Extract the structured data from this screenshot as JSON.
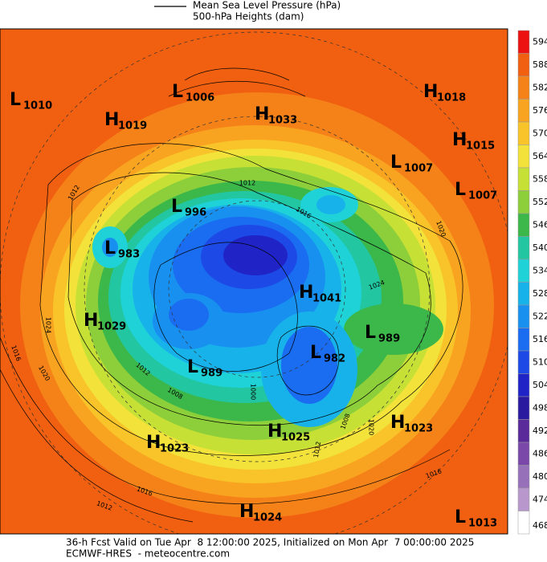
{
  "legend": {
    "line": "Mean Sea Level Pressure (hPa)",
    "fill": "500-hPa Heights (dam)"
  },
  "colorbar": {
    "ticks": [
      594,
      588,
      582,
      576,
      570,
      564,
      558,
      552,
      546,
      540,
      534,
      528,
      522,
      516,
      510,
      504,
      498,
      492,
      486,
      480,
      474,
      468
    ],
    "colors": [
      "#ec1212",
      "#f06010",
      "#f58218",
      "#f9a420",
      "#f9c42a",
      "#f2e23a",
      "#c6e036",
      "#8ccf3a",
      "#3cb84a",
      "#22c6a0",
      "#1ed2d8",
      "#18b2ea",
      "#1890f0",
      "#1a6cf0",
      "#1d4ae6",
      "#2024c6",
      "#2a1aa0",
      "#5a2a9a",
      "#7a48a8",
      "#9670b8",
      "#b898cc",
      "#ffffff"
    ]
  },
  "centers": [
    {
      "type": "L",
      "value": 1010
    },
    {
      "type": "H",
      "value": 1019
    },
    {
      "type": "L",
      "value": 1006
    },
    {
      "type": "H",
      "value": 1033
    },
    {
      "type": "H",
      "value": 1018
    },
    {
      "type": "H",
      "value": 1015
    },
    {
      "type": "L",
      "value": 1007
    },
    {
      "type": "L",
      "value": 1007
    },
    {
      "type": "L",
      "value": 996
    },
    {
      "type": "L",
      "value": 983
    },
    {
      "type": "H",
      "value": 1041
    },
    {
      "type": "H",
      "value": 1029
    },
    {
      "type": "L",
      "value": 989
    },
    {
      "type": "L",
      "value": 982
    },
    {
      "type": "L",
      "value": 989
    },
    {
      "type": "H",
      "value": 1023
    },
    {
      "type": "H",
      "value": 1025
    },
    {
      "type": "H",
      "value": 1023
    },
    {
      "type": "H",
      "value": 1024
    },
    {
      "type": "L",
      "value": 1013
    }
  ],
  "contour_labels": [
    1012,
    1012,
    1016,
    1020,
    1024,
    1024,
    1016,
    1020,
    1012,
    1008,
    1000,
    1012,
    1008,
    1020,
    1016,
    1016,
    1012
  ],
  "footer": {
    "line1": "36-h Fcst Valid on Tue Apr  8 12:00:00 2025, Initialized on Mon Apr  7 00:00:00 2025",
    "line2": "ECMWF-HRES  - meteocentre.com"
  }
}
